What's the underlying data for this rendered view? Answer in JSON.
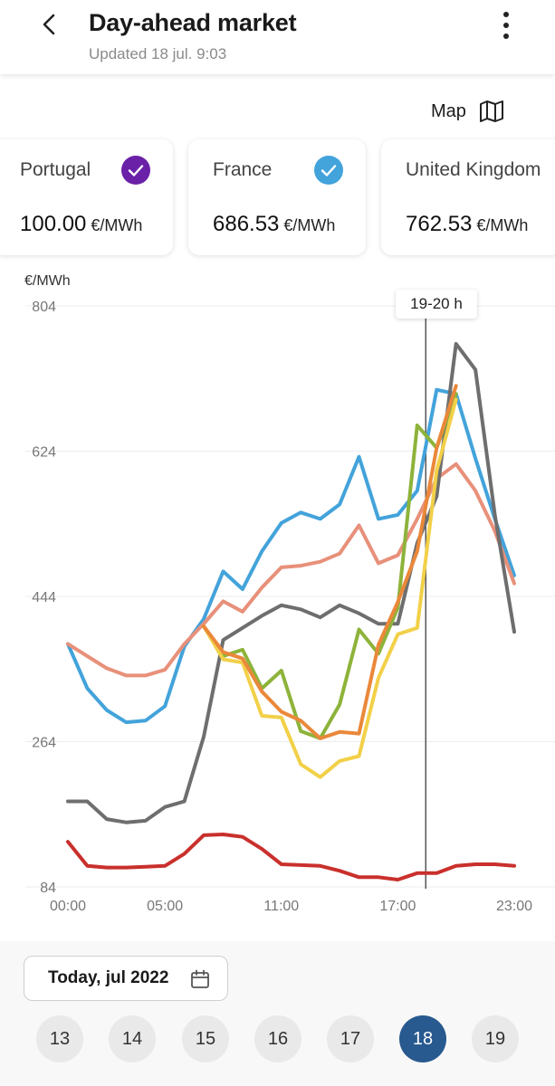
{
  "header": {
    "title": "Day-ahead market",
    "subtitle": "Updated 18 jul. 9:03"
  },
  "map_link": {
    "label": "Map"
  },
  "cards": [
    {
      "name": "Portugal",
      "price": "100.00",
      "unit": "€/MWh",
      "checked": true,
      "check_color": "#6a21a8"
    },
    {
      "name": "France",
      "price": "686.53",
      "unit": "€/MWh",
      "checked": true,
      "check_color": "#43a3db"
    },
    {
      "name": "United Kingdom",
      "price": "762.53",
      "unit": "€/MWh",
      "checked": false
    }
  ],
  "tooltip": {
    "label": "19-20 h"
  },
  "date_selector": {
    "label": "Today, jul 2022",
    "days": [
      "13",
      "14",
      "15",
      "16",
      "17",
      "18",
      "19"
    ],
    "selected": "18"
  },
  "chart_data": {
    "type": "line",
    "ylabel": "€/MWh",
    "y_ticks": [
      84,
      264,
      444,
      624,
      804
    ],
    "ylim": [
      84,
      804
    ],
    "x_ticks": [
      "00:00",
      "05:00",
      "11:00",
      "17:00",
      "23:00"
    ],
    "x": [
      0,
      1,
      2,
      3,
      4,
      5,
      6,
      7,
      8,
      9,
      10,
      11,
      12,
      13,
      14,
      15,
      16,
      17,
      18,
      19,
      20,
      21,
      22,
      23
    ],
    "highlight_hour": 19,
    "series": [
      {
        "color": "#43a3db",
        "values": [
          385,
          330,
          303,
          288,
          290,
          308,
          382,
          416,
          475,
          453,
          500,
          535,
          548,
          540,
          558,
          617,
          540,
          545,
          575,
          700,
          695,
          615,
          540,
          470
        ]
      },
      {
        "color": "#e8907a",
        "values": [
          385,
          370,
          355,
          346,
          346,
          353,
          385,
          410,
          438,
          425,
          455,
          480,
          482,
          487,
          497,
          532,
          485,
          495,
          540,
          590,
          608,
          575,
          525,
          460
        ]
      },
      {
        "color": "#6e6e6e",
        "values": [
          190,
          190,
          168,
          164,
          166,
          183,
          190,
          270,
          390,
          405,
          420,
          433,
          428,
          418,
          433,
          423,
          410,
          410,
          510,
          568,
          757,
          725,
          545,
          400
        ]
      },
      {
        "color": "#8db33a",
        "values": [
          null,
          null,
          null,
          null,
          null,
          null,
          null,
          407,
          370,
          378,
          330,
          352,
          277,
          268,
          310,
          403,
          373,
          430,
          656,
          628,
          695,
          null,
          null,
          null
        ]
      },
      {
        "color": "#f2d048",
        "values": [
          null,
          null,
          null,
          null,
          null,
          null,
          null,
          407,
          366,
          362,
          296,
          294,
          236,
          220,
          240,
          246,
          343,
          397,
          405,
          600,
          688,
          null,
          null,
          null
        ]
      },
      {
        "color": "#ea883a",
        "values": [
          null,
          null,
          null,
          null,
          null,
          null,
          null,
          407,
          375,
          367,
          326,
          301,
          290,
          268,
          276,
          274,
          384,
          437,
          500,
          628,
          705,
          null,
          null,
          null
        ]
      },
      {
        "color": "#c9302c",
        "values": [
          140,
          110,
          108,
          108,
          109,
          110,
          125,
          148,
          149,
          146,
          131,
          112,
          111,
          110,
          104,
          96,
          96,
          93,
          101,
          101,
          110,
          112,
          112,
          110
        ]
      }
    ]
  }
}
